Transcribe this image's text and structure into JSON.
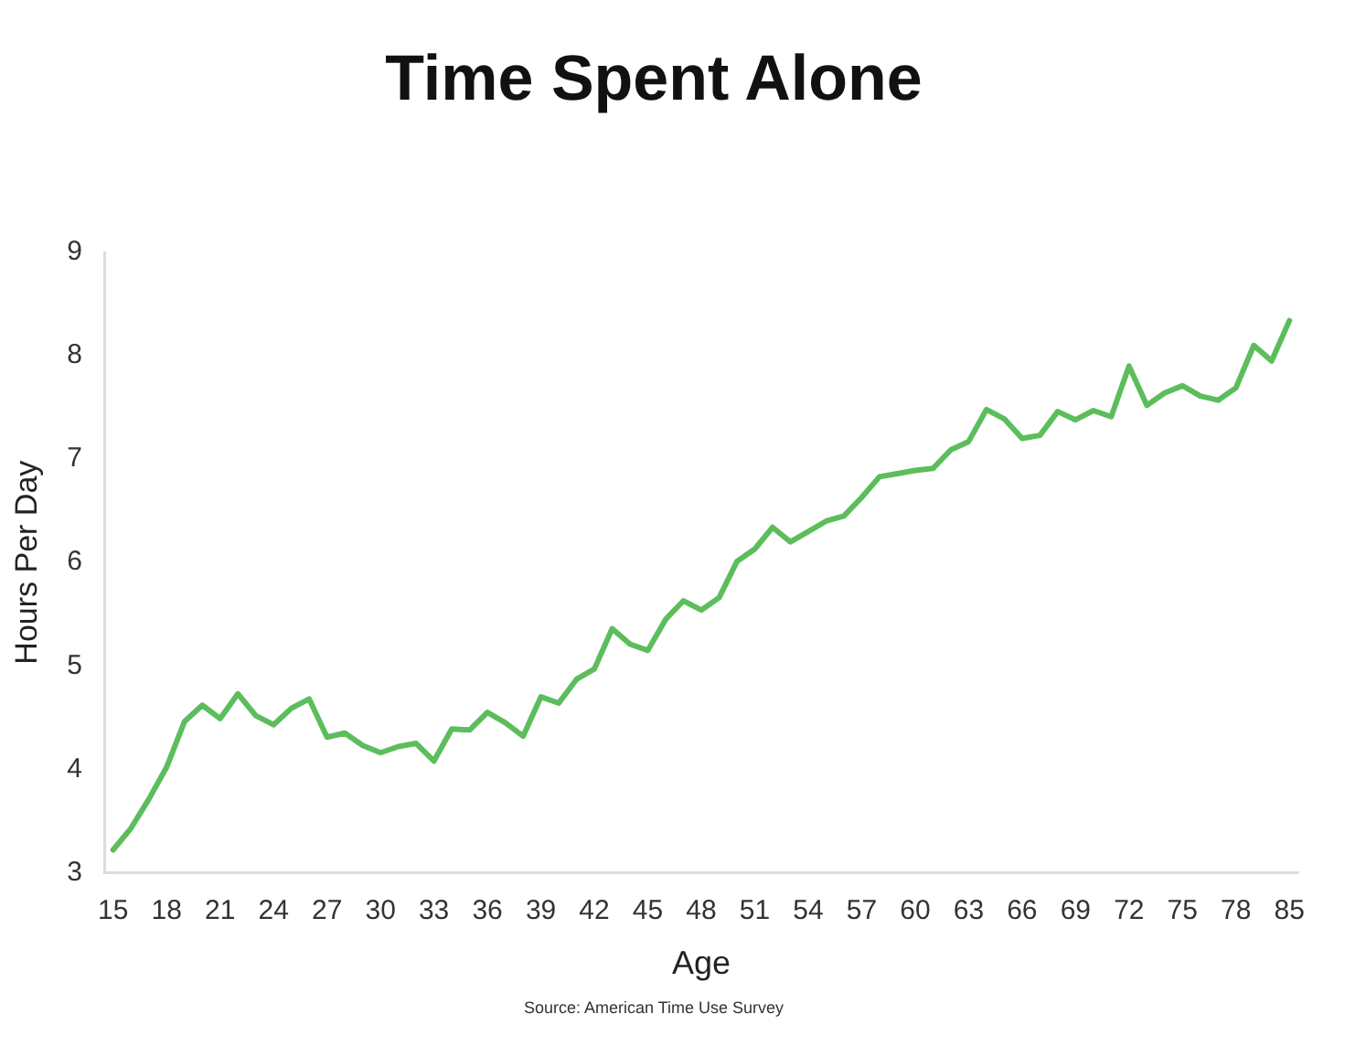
{
  "chart_data": {
    "type": "line",
    "title": "Time Spent Alone",
    "xlabel": "Age",
    "ylabel": "Hours Per Day",
    "annotations": [
      "Source: American Time Use Survey"
    ],
    "categories": [
      "15",
      null,
      null,
      "18",
      null,
      null,
      "21",
      null,
      null,
      "24",
      null,
      null,
      "27",
      null,
      null,
      "30",
      null,
      null,
      "33",
      null,
      null,
      "36",
      null,
      null,
      "39",
      null,
      null,
      "42",
      null,
      null,
      "45",
      null,
      null,
      "48",
      null,
      null,
      "51",
      null,
      null,
      "54",
      null,
      null,
      "57",
      null,
      null,
      "60",
      null,
      null,
      "63",
      null,
      null,
      "66",
      null,
      null,
      "69",
      null,
      null,
      "72",
      null,
      null,
      "75",
      null,
      null,
      "78",
      null,
      null,
      "85"
    ],
    "values": [
      3.22,
      3.43,
      3.71,
      4.02,
      4.46,
      4.62,
      4.49,
      4.73,
      4.52,
      4.43,
      4.59,
      4.68,
      4.31,
      4.35,
      4.23,
      4.16,
      4.22,
      4.25,
      4.08,
      4.39,
      4.38,
      4.55,
      4.45,
      4.32,
      4.7,
      4.64,
      4.87,
      4.97,
      5.36,
      5.21,
      5.15,
      5.45,
      5.63,
      5.54,
      5.66,
      6.01,
      6.13,
      6.34,
      6.2,
      6.3,
      6.4,
      6.45,
      6.63,
      6.83,
      6.86,
      6.89,
      6.91,
      7.09,
      7.17,
      7.48,
      7.39,
      7.2,
      7.23,
      7.46,
      7.38,
      7.47,
      7.41,
      7.9,
      7.52,
      7.64,
      7.71,
      7.61,
      7.57,
      7.69,
      8.1,
      7.95,
      8.34
    ],
    "color": "#5cbd5c",
    "ylim": [
      3,
      9
    ],
    "yticks": [
      3,
      4,
      5,
      6,
      7,
      8,
      9
    ],
    "grid": false,
    "legend": false,
    "marker": "none",
    "line_style": "solid"
  }
}
